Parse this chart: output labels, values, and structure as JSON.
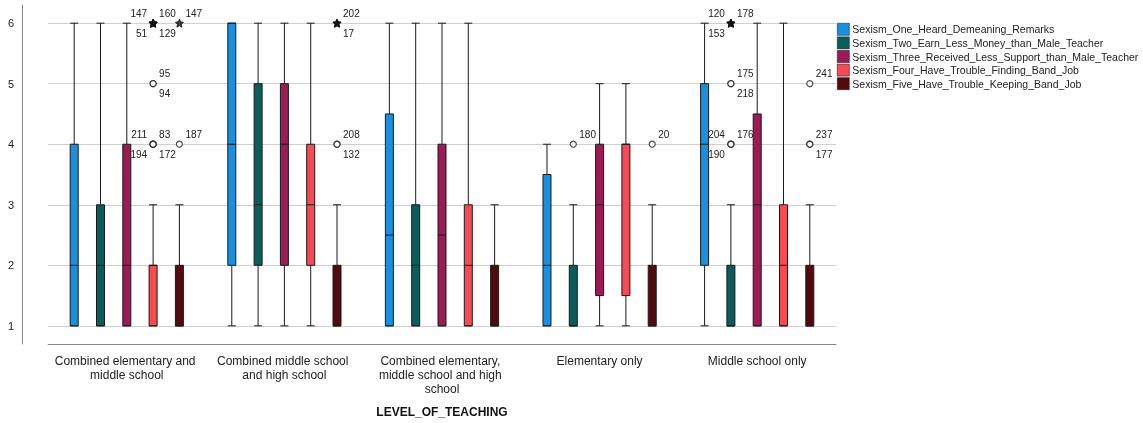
{
  "chart_data": {
    "type": "box",
    "xlabel": "LEVEL_OF_TEACHING",
    "categories": [
      "Combined elementary and middle school",
      "Combined middle school and high school",
      "Combined elementary, middle school and high school",
      "Elementary only",
      "Middle school only"
    ],
    "ylim": [
      0.7,
      6.3
    ],
    "yticks": [
      1,
      2,
      3,
      4,
      5,
      6
    ],
    "grid": "y",
    "legend": "top right",
    "series": [
      {
        "name": "Sexism_One_Heard_Demeaning_Remarks",
        "color": "#1a8fe0",
        "boxes": [
          {
            "low": 1,
            "q1": 1,
            "median": 2,
            "q3": 4,
            "high": 6
          },
          {
            "low": 1,
            "q1": 2,
            "median": 4,
            "q3": 6,
            "high": 6
          },
          {
            "low": 1,
            "q1": 1,
            "median": 2.5,
            "q3": 4.5,
            "high": 6
          },
          {
            "low": 1,
            "q1": 1,
            "median": 2,
            "q3": 3.5,
            "high": 4
          },
          {
            "low": 1,
            "q1": 2,
            "median": 4,
            "q3": 5,
            "high": 6
          }
        ]
      },
      {
        "name": "Sexism_Two_Earn_Less_Money_than_Male_Teacher",
        "color": "#0b5c5c",
        "boxes": [
          {
            "low": 1,
            "q1": 1,
            "median": 2,
            "q3": 3,
            "high": 6
          },
          {
            "low": 1,
            "q1": 2,
            "median": 3,
            "q3": 5,
            "high": 6
          },
          {
            "low": 1,
            "q1": 1,
            "median": 2,
            "q3": 3,
            "high": 6
          },
          {
            "low": 1,
            "q1": 1,
            "median": 1,
            "q3": 2,
            "high": 3,
            "outliers": [
              4
            ]
          },
          {
            "low": 1,
            "q1": 1,
            "median": 1,
            "q3": 2,
            "high": 3,
            "outliers": [
              4,
              4,
              4,
              5,
              5,
              6,
              6,
              6
            ]
          }
        ]
      },
      {
        "name": "Sexism_Three_Received_Less_Support_than_Male_Teacher",
        "color": "#9c1a55",
        "boxes": [
          {
            "low": 1,
            "q1": 1,
            "median": 2,
            "q3": 4,
            "high": 6
          },
          {
            "low": 1,
            "q1": 2,
            "median": 4,
            "q3": 5,
            "high": 6
          },
          {
            "low": 1,
            "q1": 1,
            "median": 2.5,
            "q3": 4,
            "high": 6
          },
          {
            "low": 1,
            "q1": 1.5,
            "median": 3,
            "q3": 4,
            "high": 5
          },
          {
            "low": 1,
            "q1": 1,
            "median": 3,
            "q3": 4.5,
            "high": 6
          }
        ]
      },
      {
        "name": "Sexism_Four_Have_Trouble_Finding_Band_Job",
        "color": "#f74a52",
        "boxes": [
          {
            "low": 1,
            "q1": 1,
            "median": 2,
            "q3": 2,
            "high": 3,
            "outliers": [
              4,
              4,
              4,
              4,
              5,
              5,
              6,
              6,
              6,
              6
            ]
          },
          {
            "low": 1,
            "q1": 2,
            "median": 3,
            "q3": 4,
            "high": 6
          },
          {
            "low": 1,
            "q1": 1,
            "median": 2,
            "q3": 3,
            "high": 6
          },
          {
            "low": 1,
            "q1": 1.5,
            "median": 4,
            "q3": 4,
            "high": 5
          },
          {
            "low": 1,
            "q1": 1,
            "median": 2,
            "q3": 3,
            "high": 6
          }
        ]
      },
      {
        "name": "Sexism_Five_Have_Trouble_Keeping_Band_Job",
        "color": "#520a0f",
        "boxes": [
          {
            "low": 1,
            "q1": 1,
            "median": 1,
            "q3": 2,
            "high": 3,
            "outliers": [
              4,
              6
            ]
          },
          {
            "low": 1,
            "q1": 1,
            "median": 1,
            "q3": 2,
            "high": 3,
            "outliers": [
              4,
              4,
              6,
              6
            ]
          },
          {
            "low": 1,
            "q1": 1,
            "median": 1,
            "q3": 2,
            "high": 3
          },
          {
            "low": 1,
            "q1": 1,
            "median": 1,
            "q3": 2,
            "high": 3,
            "outliers": [
              4
            ]
          },
          {
            "low": 1,
            "q1": 1,
            "median": 1,
            "q3": 2,
            "high": 3,
            "outliers": [
              4,
              4,
              5
            ]
          }
        ]
      }
    ],
    "annotations": [
      "180",
      "176",
      "204",
      "190",
      "175",
      "218",
      "178",
      "120",
      "153",
      "83",
      "211",
      "194",
      "172",
      "95",
      "94",
      "160",
      "147",
      "51",
      "129",
      "187",
      "147",
      "208",
      "132",
      "202",
      "17",
      "20",
      "237",
      "177",
      "241"
    ]
  }
}
